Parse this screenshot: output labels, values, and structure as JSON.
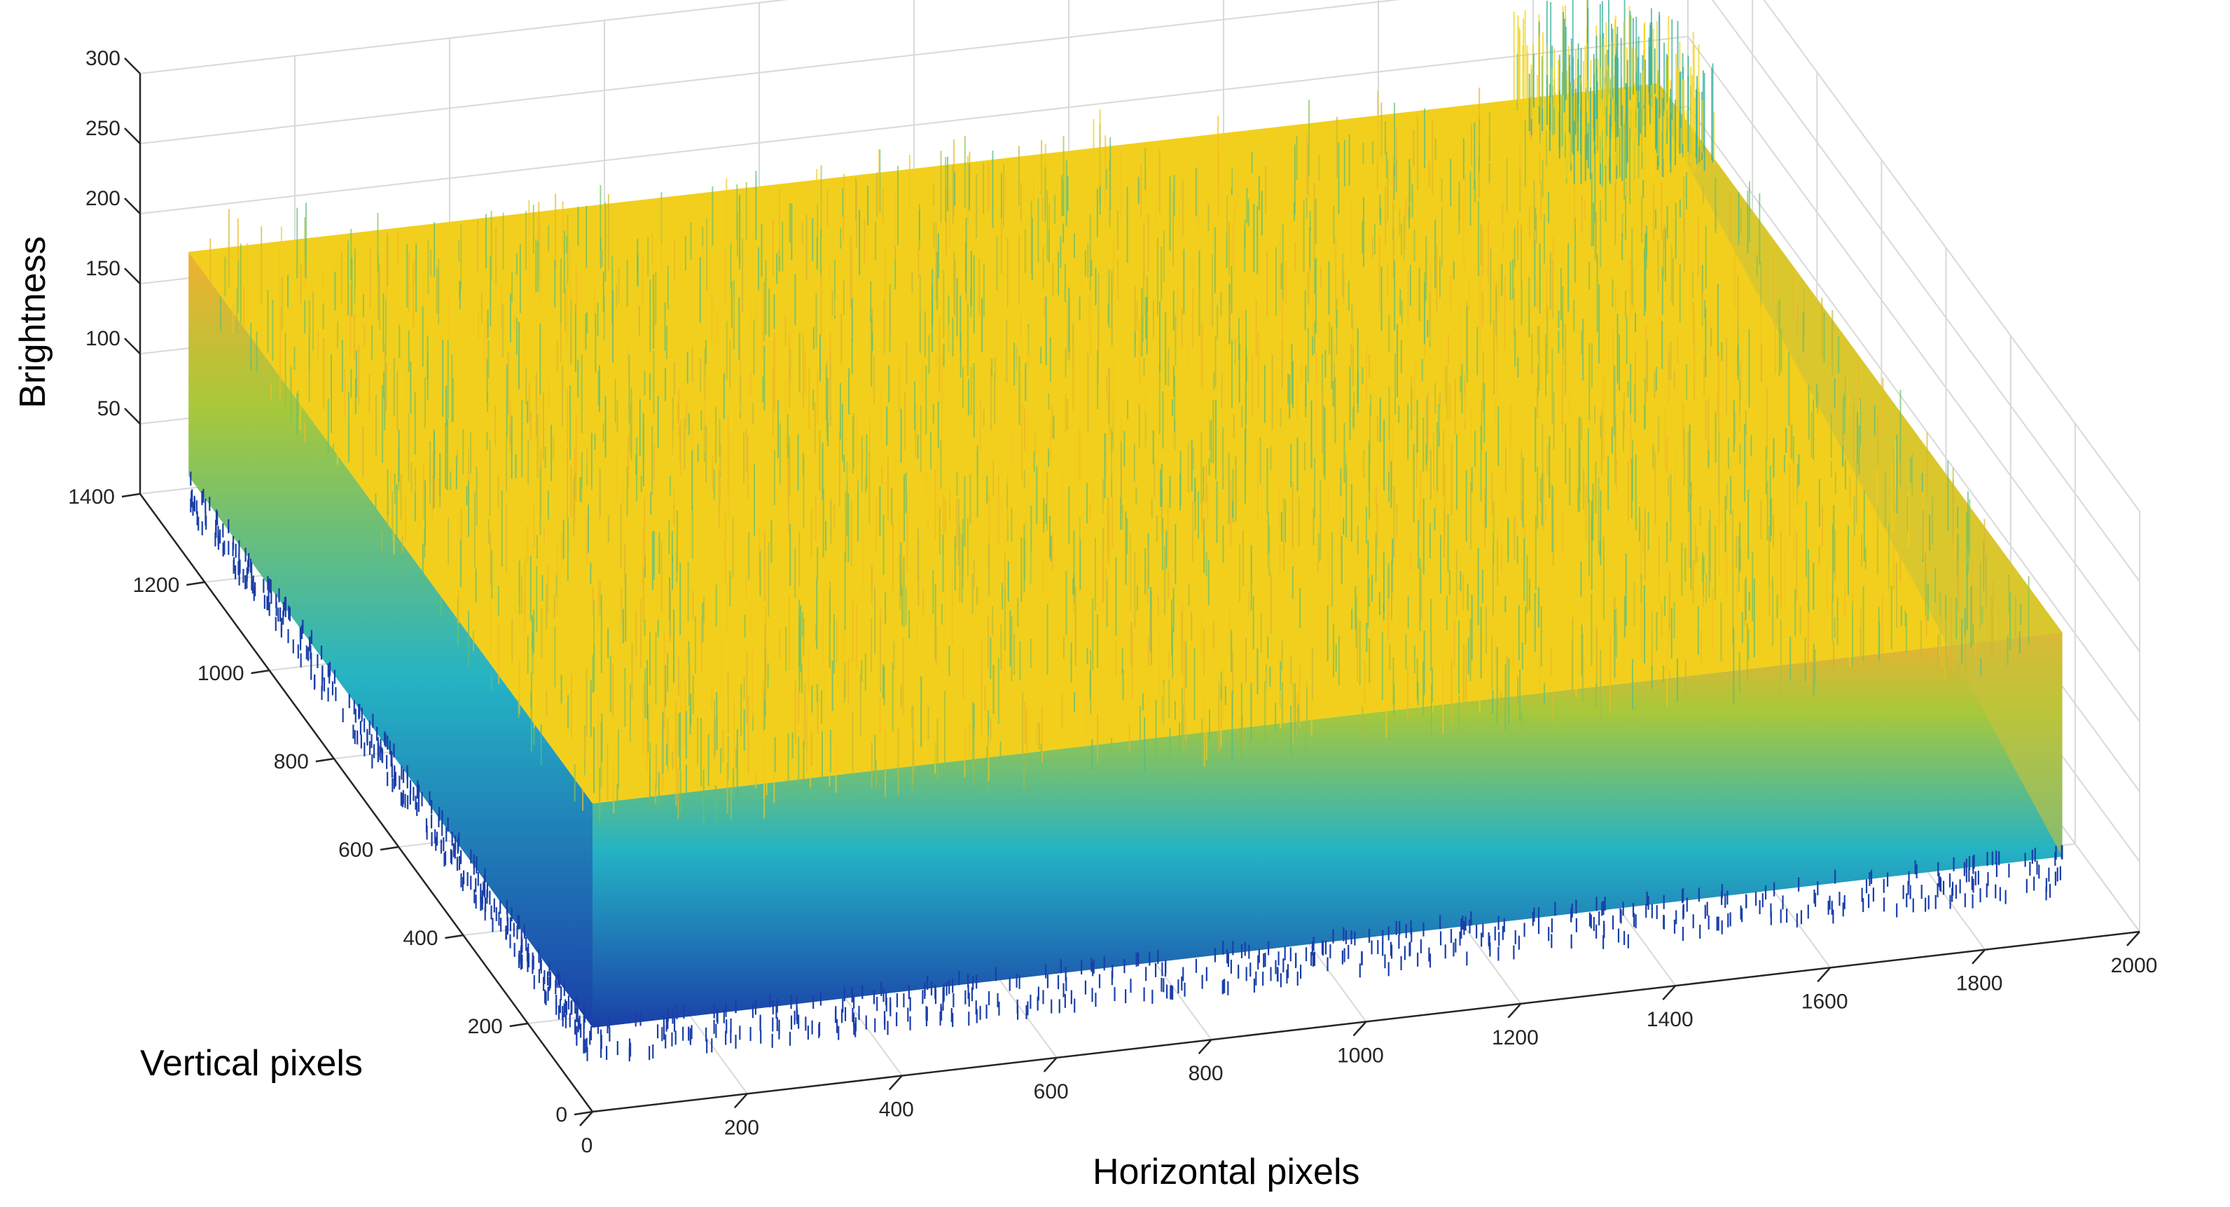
{
  "chart_data": {
    "type": "surface",
    "title": "",
    "xlabel": "Horizontal pixels",
    "ylabel": "Vertical pixels",
    "zlabel": "Brightness",
    "xlim": [
      0,
      2000
    ],
    "ylim": [
      0,
      1400
    ],
    "zlim": [
      0,
      300
    ],
    "xticks": [
      "0",
      "200",
      "400",
      "600",
      "800",
      "1000",
      "1200",
      "1400",
      "1600",
      "1800",
      "2000"
    ],
    "yticks": [
      "0",
      "200",
      "400",
      "600",
      "800",
      "1000",
      "1200",
      "1400"
    ],
    "zticks": [
      "50",
      "100",
      "150",
      "200",
      "250",
      "300"
    ],
    "grid": true,
    "colormap": "parula",
    "colors": {
      "low": "#1a3fa8",
      "mid": "#25b3c4",
      "high": "#f5d417",
      "peak": "#f0b030"
    },
    "surface_extent": {
      "x": [
        0,
        1900
      ],
      "y": [
        0,
        1250
      ]
    },
    "surface": {
      "plateau_mean": 220,
      "plateau_range": [
        185,
        265
      ],
      "edge_value_min": 60,
      "noise": "high-frequency random pixel noise",
      "corner_peak_region": {
        "x": [
          1700,
          1900
        ],
        "y": [
          1050,
          1250
        ],
        "value": 270
      }
    }
  }
}
